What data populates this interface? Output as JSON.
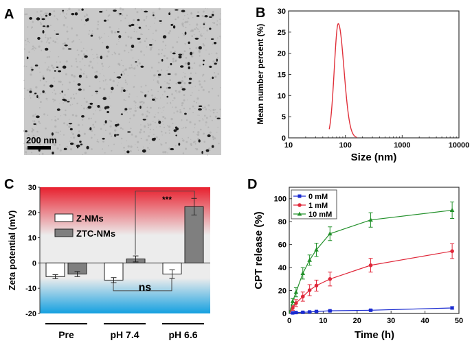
{
  "panels": {
    "a": "A",
    "b": "B",
    "c": "C",
    "d": "D"
  },
  "tem": {
    "scale_bar_label": "200 nm",
    "background": "#c9c9c9"
  },
  "chart_data": [
    {
      "panel": "B",
      "type": "line",
      "xlabel": "Size (nm)",
      "ylabel": "Mean number percent (%)",
      "xscale": "log",
      "xlim": [
        10,
        10000
      ],
      "ylim": [
        0,
        30
      ],
      "xticks": [
        "10",
        "100",
        "1000",
        "10000"
      ],
      "yticks": [
        "0",
        "5",
        "10",
        "15",
        "20",
        "25",
        "30"
      ],
      "color": "#e0303a",
      "peak": {
        "x": 75,
        "y": 27
      },
      "range": [
        52,
        160
      ]
    },
    {
      "panel": "C",
      "type": "bar",
      "ylabel": "Zeta potential (mV)",
      "ylim": [
        -20,
        30
      ],
      "yticks": [
        "-20",
        "-10",
        "0",
        "10",
        "20",
        "30"
      ],
      "categories": [
        "Pre",
        "pH 7.4",
        "pH 6.6"
      ],
      "series": [
        {
          "name": "Z-NMs",
          "color": "#ffffff",
          "values": [
            -5.4,
            -6.8,
            -4.4
          ],
          "errors": [
            0.8,
            1.0,
            1.7
          ]
        },
        {
          "name": "ZTC-NMs",
          "color": "#7f7f7f",
          "values": [
            -4.4,
            1.6,
            22.3
          ],
          "errors": [
            1.0,
            1.2,
            3.3
          ]
        }
      ],
      "annotations": [
        {
          "text": "***",
          "between": [
            "pH 7.4 ZTC-NMs",
            "pH 6.6 ZTC-NMs"
          ]
        },
        {
          "text": "ns",
          "between": [
            "pH 7.4 Z-NMs",
            "pH 6.6 Z-NMs"
          ]
        }
      ],
      "background": {
        "positive": "#e8202e",
        "neutral": "#ececec",
        "negative": "#14a0e0"
      }
    },
    {
      "panel": "D",
      "type": "line",
      "xlabel": "Time (h)",
      "ylabel": "CPT release (%)",
      "xlim": [
        0,
        50
      ],
      "ylim": [
        0,
        110
      ],
      "xticks": [
        "0",
        "10",
        "20",
        "30",
        "40",
        "50"
      ],
      "yticks": [
        "0",
        "20",
        "40",
        "60",
        "80",
        "100"
      ],
      "legend": "top-left",
      "x": [
        0,
        1,
        2,
        4,
        6,
        8,
        12,
        24,
        48
      ],
      "series": [
        {
          "name": "0 mM",
          "color": "#1a2bd0",
          "marker": "square",
          "values": [
            0,
            0.5,
            0.8,
            1.0,
            1.3,
            1.7,
            2.3,
            2.8,
            4.8
          ],
          "errors": [
            0,
            0.3,
            0.3,
            0.4,
            0.4,
            0.5,
            0.5,
            0.6,
            1.0
          ]
        },
        {
          "name": "1 mM",
          "color": "#e0283a",
          "marker": "circle",
          "values": [
            0,
            4.8,
            9.0,
            14.7,
            20.3,
            24.3,
            30.0,
            42.0,
            54.3
          ],
          "errors": [
            0,
            2.0,
            3.0,
            4.0,
            4.8,
            4.8,
            6.0,
            6.0,
            6.5
          ]
        },
        {
          "name": "10 mM",
          "color": "#22902a",
          "marker": "triangle",
          "values": [
            0,
            10.5,
            18.5,
            35.0,
            46.5,
            55.5,
            69.5,
            81.5,
            90.0
          ],
          "errors": [
            0,
            2.5,
            4.0,
            5.0,
            4.5,
            5.8,
            6.0,
            6.3,
            7.2
          ]
        }
      ]
    }
  ]
}
